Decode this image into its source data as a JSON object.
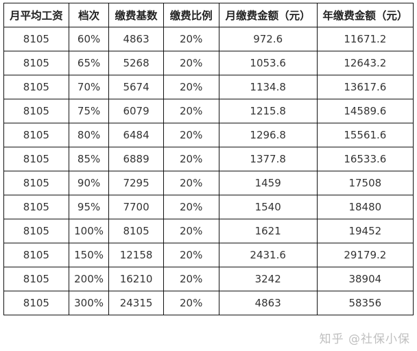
{
  "table": {
    "headers": [
      "月平均工资",
      "档次",
      "缴费基数",
      "缴费比例",
      "月缴费金额（元）",
      "年缴费金额（元）"
    ],
    "rows": [
      [
        "8105",
        "60%",
        "4863",
        "20%",
        "972.6",
        "11671.2"
      ],
      [
        "8105",
        "65%",
        "5268",
        "20%",
        "1053.6",
        "12643.2"
      ],
      [
        "8105",
        "70%",
        "5674",
        "20%",
        "1134.8",
        "13617.6"
      ],
      [
        "8105",
        "75%",
        "6079",
        "20%",
        "1215.8",
        "14589.6"
      ],
      [
        "8105",
        "80%",
        "6484",
        "20%",
        "1296.8",
        "15561.6"
      ],
      [
        "8105",
        "85%",
        "6889",
        "20%",
        "1377.8",
        "16533.6"
      ],
      [
        "8105",
        "90%",
        "7295",
        "20%",
        "1459",
        "17508"
      ],
      [
        "8105",
        "95%",
        "7700",
        "20%",
        "1540",
        "18480"
      ],
      [
        "8105",
        "100%",
        "8105",
        "20%",
        "1621",
        "19452"
      ],
      [
        "8105",
        "150%",
        "12158",
        "20%",
        "2431.6",
        "29179.2"
      ],
      [
        "8105",
        "200%",
        "16210",
        "20%",
        "3242",
        "38904"
      ],
      [
        "8105",
        "300%",
        "24315",
        "20%",
        "4863",
        "58356"
      ]
    ]
  },
  "watermark": "知乎 @社保小保"
}
